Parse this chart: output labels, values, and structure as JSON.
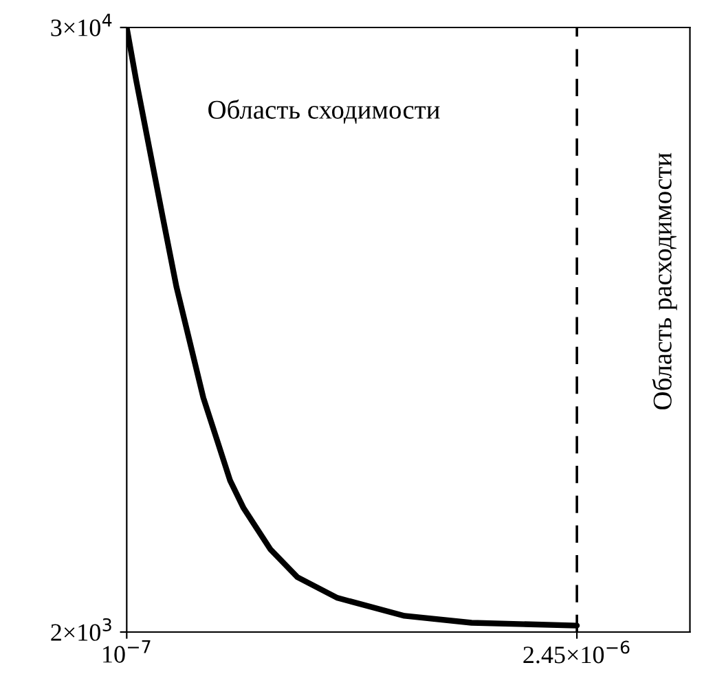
{
  "chart_data": {
    "type": "line",
    "x": [
      1e-07,
      1.49e-07,
      2.19e-07,
      2.89e-07,
      3.6e-07,
      4.3e-07,
      5e-07,
      5.7e-07,
      6.4e-07,
      7.1e-07,
      8.51e-07,
      9.91e-07,
      1.2e-06,
      1.55e-06,
      1.9e-06,
      2.45e-06
    ],
    "series": [
      {
        "color": "#000000",
        "values": [
          30000,
          27570,
          24370,
          21170,
          17970,
          15410,
          12850,
          10930,
          9010,
          7740,
          5820,
          4540,
          3580,
          2750,
          2430,
          2300
        ]
      }
    ],
    "xlim": [
      1e-07,
      3.04e-06
    ],
    "ylim": [
      2000,
      30000
    ],
    "xticks": [
      {
        "value": 1e-07,
        "label": "10$^{−7}$"
      },
      {
        "value": 2.45e-06,
        "label": "2.45×10$^{−6}$"
      }
    ],
    "yticks": [
      {
        "value": 2000,
        "label": "2×10$^{3}$"
      },
      {
        "value": 30000,
        "label": "3×10$^{4}$"
      }
    ],
    "ref_lines": [
      {
        "axis": "x",
        "value": 2.45e-06,
        "color": "#000000",
        "line_style": "dashed"
      }
    ],
    "annotations": [
      "Область сходимости",
      "Область расходимости"
    ],
    "grid": false,
    "legend": false,
    "marker": "none",
    "line_style": "solid"
  }
}
